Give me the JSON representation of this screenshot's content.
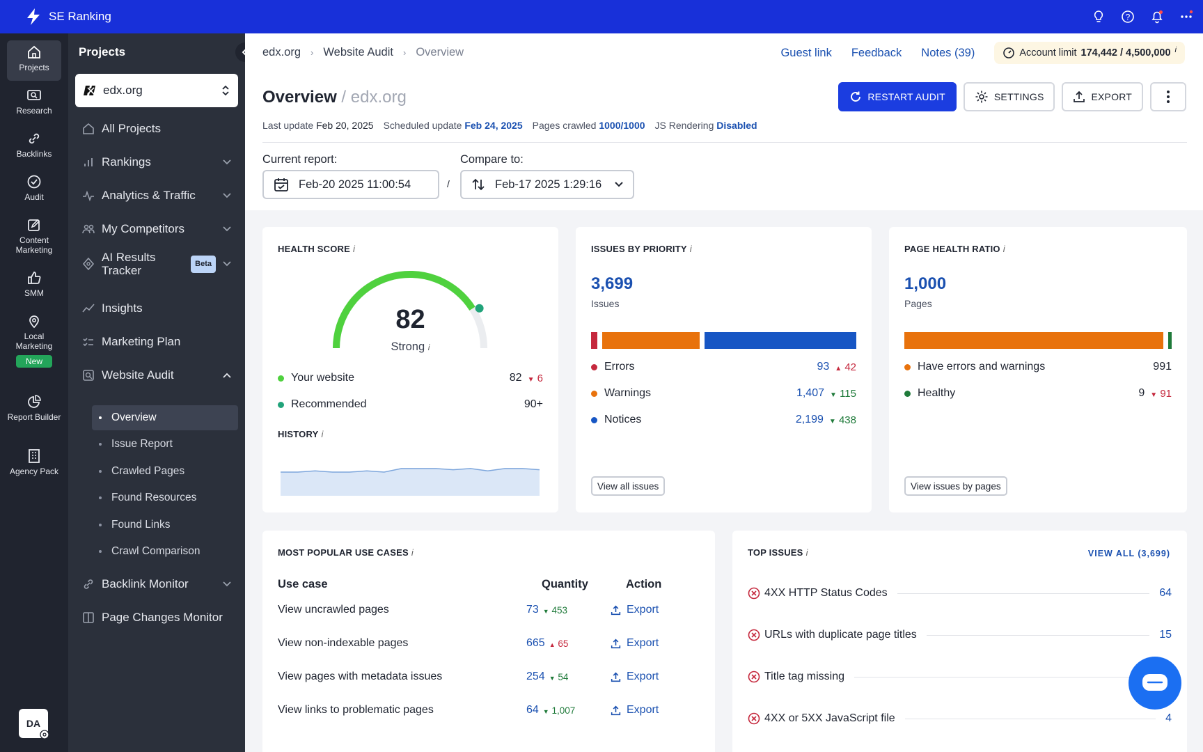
{
  "app": {
    "brand": "SE Ranking"
  },
  "rail": {
    "items": [
      {
        "label": "Projects",
        "icon": "home-icon"
      },
      {
        "label": "Research",
        "icon": "research-icon"
      },
      {
        "label": "Backlinks",
        "icon": "link-icon"
      },
      {
        "label": "Audit",
        "icon": "check-circle-icon"
      },
      {
        "label": "Content Marketing",
        "icon": "edit-icon"
      },
      {
        "label": "SMM",
        "icon": "thumbs-up-icon"
      },
      {
        "label": "Local Marketing",
        "icon": "pin-icon",
        "badge": "New"
      },
      {
        "label": "Report Builder",
        "icon": "pie-icon"
      },
      {
        "label": "Agency Pack",
        "icon": "building-icon"
      }
    ],
    "avatar": "DA"
  },
  "panel": {
    "title": "Projects",
    "project": "edx.org",
    "nav": [
      {
        "label": "All Projects"
      },
      {
        "label": "Rankings"
      },
      {
        "label": "Analytics & Traffic"
      },
      {
        "label": "My Competitors"
      },
      {
        "label": "AI Results Tracker",
        "badge": "Beta"
      },
      {
        "label": "Insights"
      },
      {
        "label": "Marketing Plan"
      },
      {
        "label": "Website Audit"
      },
      {
        "label": "Backlink Monitor"
      },
      {
        "label": "Page Changes Monitor"
      }
    ],
    "audit_sub": [
      "Overview",
      "Issue Report",
      "Crawled Pages",
      "Found Resources",
      "Found Links",
      "Crawl Comparison"
    ]
  },
  "breadcrumb": [
    "edx.org",
    "Website Audit",
    "Overview"
  ],
  "toplinks": {
    "guest": "Guest link",
    "feedback": "Feedback",
    "notes": "Notes (39)",
    "account_label": "Account limit",
    "account_value": "174,442 / 4,500,000",
    "info": "i"
  },
  "title": {
    "main": "Overview",
    "sub": "/ edx.org"
  },
  "buttons": {
    "restart": "RESTART AUDIT",
    "settings": "SETTINGS",
    "export": "EXPORT"
  },
  "meta": {
    "last_update_label": "Last update",
    "last_update": "Feb 20, 2025",
    "scheduled_label": "Scheduled update",
    "scheduled": "Feb 24, 2025",
    "crawled_label": "Pages crawled",
    "crawled": "1000/1000",
    "js_label": "JS Rendering",
    "js": "Disabled"
  },
  "reports": {
    "current_label": "Current report:",
    "current": "Feb-20 2025 11:00:54",
    "slash": "/",
    "compare_label": "Compare to:",
    "compare": "Feb-17 2025 1:29:16"
  },
  "health": {
    "title": "HEALTH SCORE",
    "score": "82",
    "score_value": 82,
    "rating": "Strong",
    "your_label": "Your website",
    "your_value": "82",
    "your_delta": "6",
    "rec_label": "Recommended",
    "rec_value": "90+",
    "history_title": "HISTORY",
    "history": [
      80,
      80,
      81,
      80,
      80,
      81,
      80,
      83,
      83,
      83,
      82,
      83,
      81,
      83,
      83,
      82
    ]
  },
  "issues": {
    "title": "ISSUES BY PRIORITY",
    "total": "3,699",
    "total_label": "Issues",
    "split": [
      93,
      1407,
      2199
    ],
    "colors": [
      "#c5283d",
      "#e8720c",
      "#1756c4"
    ],
    "rows": [
      {
        "label": "Errors",
        "value": "93",
        "delta": "42",
        "dir": "up"
      },
      {
        "label": "Warnings",
        "value": "1,407",
        "delta": "115",
        "dir": "down"
      },
      {
        "label": "Notices",
        "value": "2,199",
        "delta": "438",
        "dir": "down"
      }
    ],
    "button": "View all issues"
  },
  "page_health": {
    "title": "PAGE HEALTH RATIO",
    "total": "1,000",
    "total_label": "Pages",
    "split": [
      991,
      9
    ],
    "colors": [
      "#e8720c",
      "#1f7a3a"
    ],
    "rows": [
      {
        "label": "Have errors and warnings",
        "value": "991"
      },
      {
        "label": "Healthy",
        "value": "9",
        "delta": "91",
        "dir": "up"
      }
    ],
    "button": "View issues by pages"
  },
  "use_cases": {
    "title": "MOST POPULAR USE CASES",
    "headers": {
      "case": "Use case",
      "qty": "Quantity",
      "action": "Action"
    },
    "rows": [
      {
        "label": "View uncrawled pages",
        "value": "73",
        "delta": "453",
        "dir": "down",
        "action": "Export"
      },
      {
        "label": "View non-indexable pages",
        "value": "665",
        "delta": "65",
        "dir": "up",
        "action": "Export"
      },
      {
        "label": "View pages with metadata issues",
        "value": "254",
        "delta": "54",
        "dir": "down",
        "action": "Export"
      },
      {
        "label": "View links to problematic pages",
        "value": "64",
        "delta": "1,007",
        "dir": "down",
        "action": "Export"
      }
    ]
  },
  "top_issues": {
    "title": "TOP ISSUES",
    "view_all": "VIEW ALL (3,699)",
    "rows": [
      {
        "label": "4XX HTTP Status Codes",
        "value": "64"
      },
      {
        "label": "URLs with duplicate page titles",
        "value": "15"
      },
      {
        "label": "Title tag missing",
        "value": ""
      },
      {
        "label": "4XX or 5XX JavaScript file",
        "value": "4"
      }
    ]
  }
}
